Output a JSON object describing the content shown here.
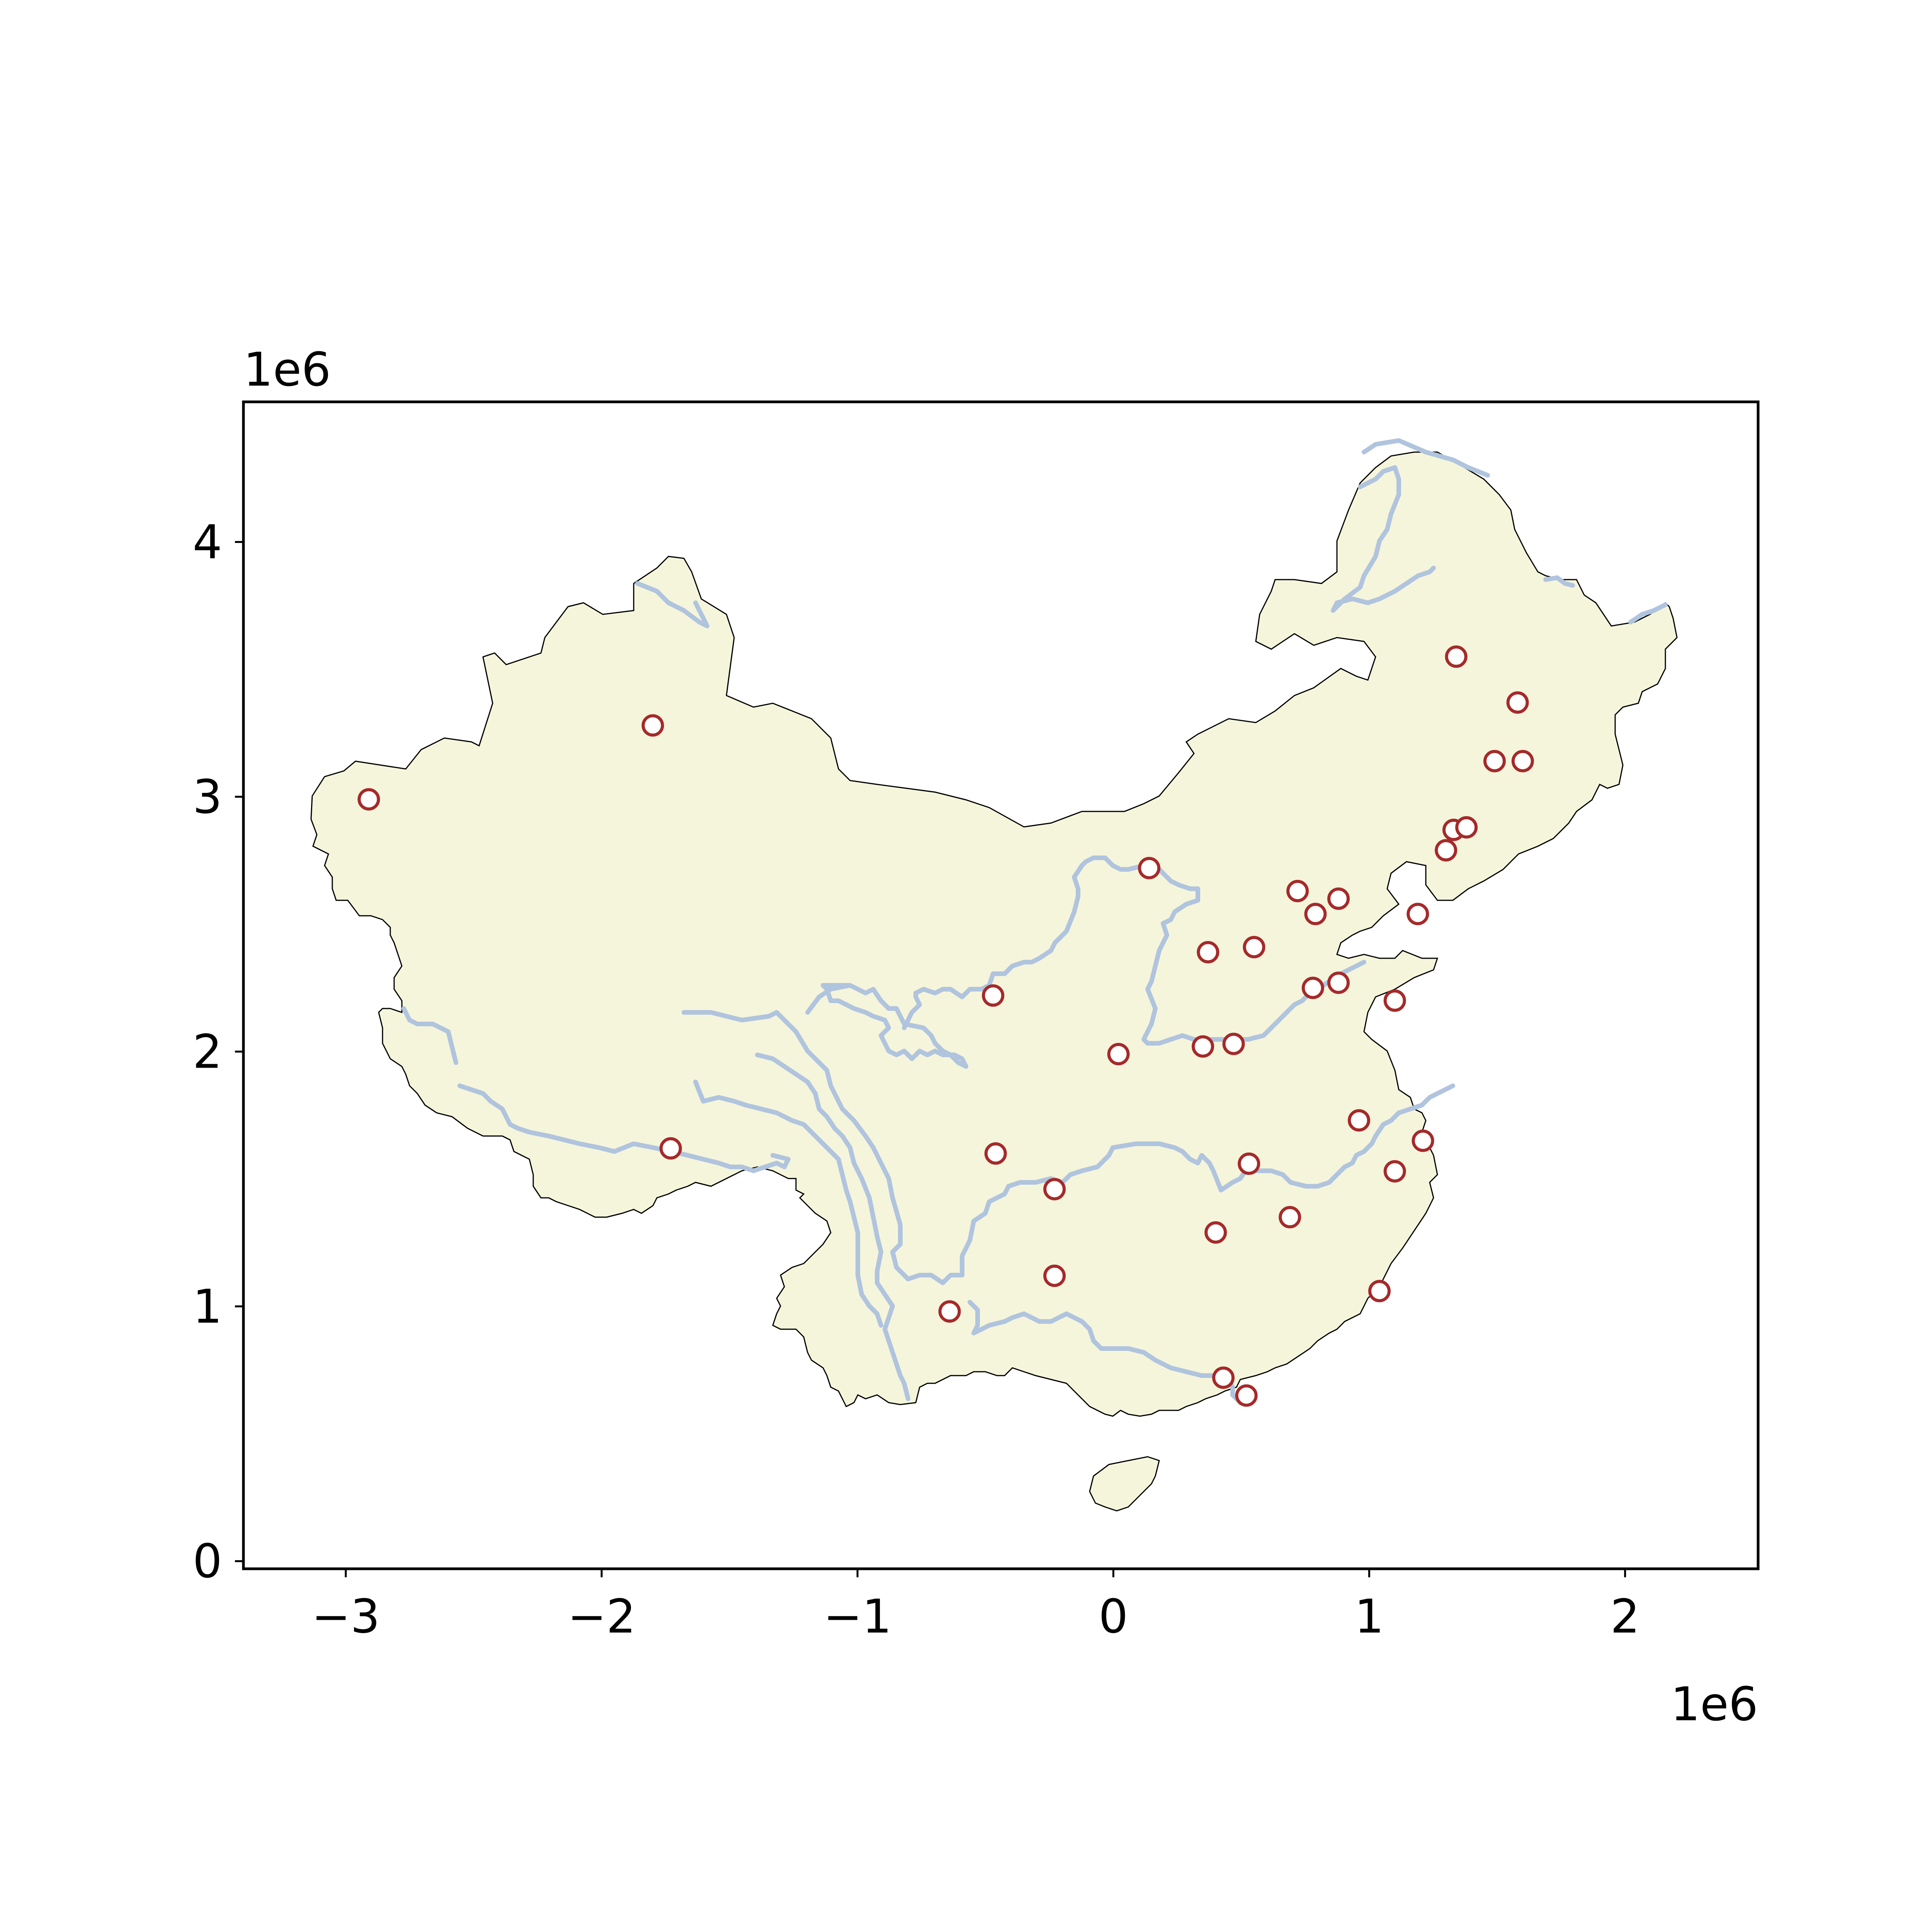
{
  "chart_data": {
    "type": "scatter",
    "title": "",
    "xlabel": "",
    "ylabel": "",
    "xlim": [
      -3400000,
      2520000
    ],
    "ylim": [
      -30000,
      4550000
    ],
    "x_ticks": [
      -3000000,
      -2000000,
      -1000000,
      0,
      1000000,
      2000000
    ],
    "y_ticks": [
      0,
      1000000,
      2000000,
      3000000,
      4000000
    ],
    "x_tick_labels": [
      "−3",
      "−2",
      "−1",
      "0",
      "1",
      "2"
    ],
    "y_tick_labels": [
      "0",
      "1",
      "2",
      "3",
      "4"
    ],
    "x_offset_label": "1e6",
    "y_offset_label": "1e6",
    "grid": false,
    "land_color": "#f5f5dc",
    "border_color": "#000000",
    "river_color": "#b0c4de",
    "marker_edge_color": "#a52a2a",
    "marker_face_color": "#ffffff",
    "series": [
      {
        "values": [
          {
            "x": -2910000,
            "y": 2990000
          },
          {
            "x": -1800000,
            "y": 3280000
          },
          {
            "x": -1730000,
            "y": 1620000
          },
          {
            "x": -470000,
            "y": 2220000
          },
          {
            "x": -460000,
            "y": 1600000
          },
          {
            "x": -230000,
            "y": 1460000
          },
          {
            "x": -230000,
            "y": 1120000
          },
          {
            "x": -640000,
            "y": 980000
          },
          {
            "x": 20000,
            "y": 1990000
          },
          {
            "x": 140000,
            "y": 2720000
          },
          {
            "x": 350000,
            "y": 2020000
          },
          {
            "x": 470000,
            "y": 2030000
          },
          {
            "x": 370000,
            "y": 2390000
          },
          {
            "x": 550000,
            "y": 2410000
          },
          {
            "x": 720000,
            "y": 2630000
          },
          {
            "x": 790000,
            "y": 2540000
          },
          {
            "x": 880000,
            "y": 2600000
          },
          {
            "x": 780000,
            "y": 2250000
          },
          {
            "x": 880000,
            "y": 2270000
          },
          {
            "x": 1100000,
            "y": 2200000
          },
          {
            "x": 1190000,
            "y": 2540000
          },
          {
            "x": 1300000,
            "y": 2790000
          },
          {
            "x": 1330000,
            "y": 2870000
          },
          {
            "x": 1380000,
            "y": 2880000
          },
          {
            "x": 1490000,
            "y": 3140000
          },
          {
            "x": 1600000,
            "y": 3140000
          },
          {
            "x": 1580000,
            "y": 3370000
          },
          {
            "x": 1340000,
            "y": 3550000
          },
          {
            "x": 960000,
            "y": 1730000
          },
          {
            "x": 1210000,
            "y": 1650000
          },
          {
            "x": 1100000,
            "y": 1530000
          },
          {
            "x": 530000,
            "y": 1560000
          },
          {
            "x": 690000,
            "y": 1350000
          },
          {
            "x": 400000,
            "y": 1290000
          },
          {
            "x": 1040000,
            "y": 1060000
          },
          {
            "x": 430000,
            "y": 720000
          },
          {
            "x": 520000,
            "y": 650000
          }
        ]
      }
    ]
  }
}
